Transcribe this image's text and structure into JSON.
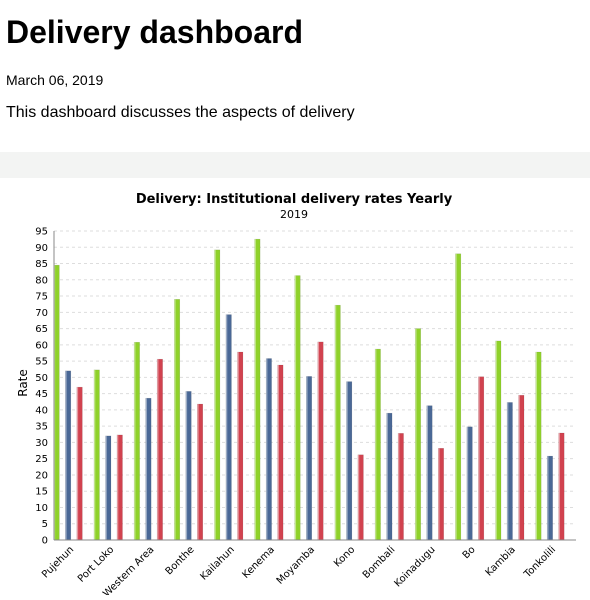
{
  "header": {
    "title": "Delivery dashboard",
    "date": "March 06, 2019",
    "description": "This dashboard discusses the aspects of delivery"
  },
  "chart_data": {
    "type": "bar",
    "title": "Delivery: Institutional delivery rates Yearly",
    "subtitle": "2019",
    "ylabel": "Rate",
    "xlabel": "",
    "ylim": [
      0,
      95
    ],
    "ytick_step": 5,
    "grid": true,
    "categories": [
      "Pujehun",
      "Port Loko",
      "Western Area",
      "Bonthe",
      "Kailahun",
      "Kenema",
      "Moyamba",
      "Kono",
      "Bombali",
      "Koinadugu",
      "Bo",
      "Kambia",
      "Tonkolili"
    ],
    "series": [
      {
        "color": "#8fd12a",
        "values": [
          84.5,
          52.3,
          60.8,
          74.0,
          89.2,
          92.5,
          81.3,
          72.2,
          58.7,
          65.0,
          88.0,
          61.2,
          57.8
        ]
      },
      {
        "color": "#4a6896",
        "values": [
          52.0,
          32.0,
          43.6,
          45.7,
          69.3,
          55.8,
          50.3,
          48.7,
          39.0,
          41.3,
          34.8,
          42.3,
          25.8
        ]
      },
      {
        "color": "#d1424f",
        "values": [
          47.0,
          32.3,
          55.6,
          41.8,
          57.8,
          53.8,
          60.9,
          26.2,
          32.8,
          28.2,
          50.2,
          44.5,
          32.9
        ]
      }
    ]
  }
}
